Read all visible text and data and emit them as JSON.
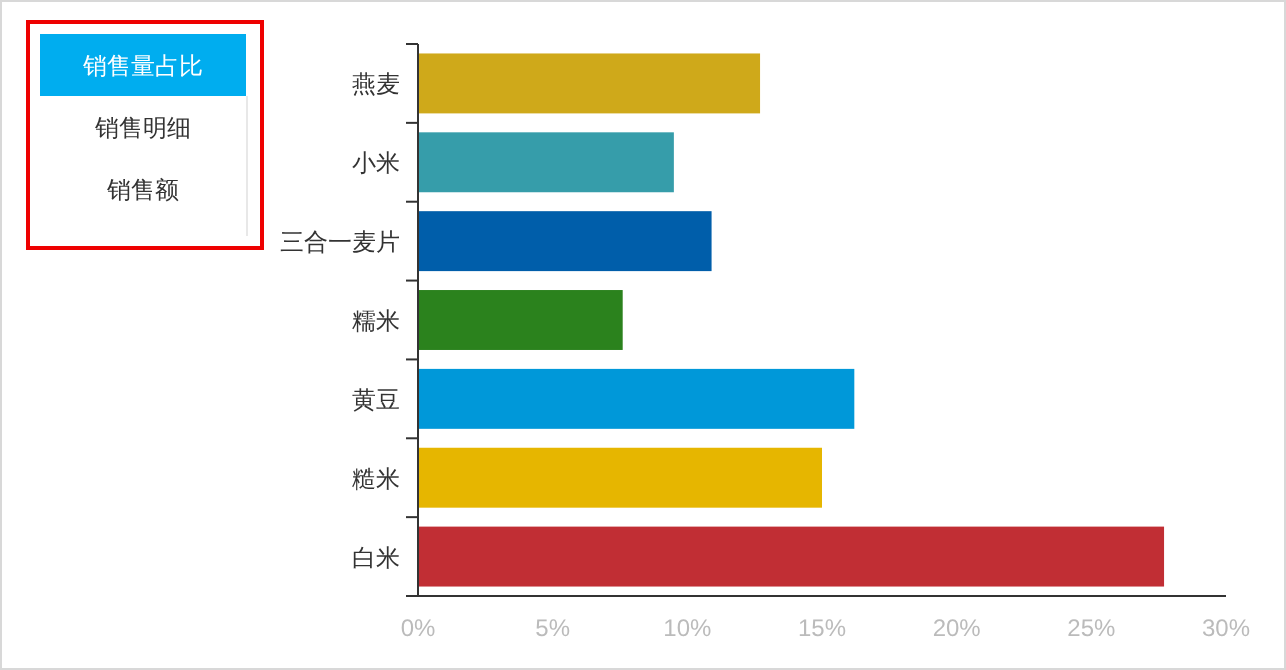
{
  "chart_data": [
    {
      "type": "other",
      "annotations": [
        "销售量占比",
        "销售明细",
        "销售额"
      ]
    },
    {
      "type": "bar",
      "orientation": "horizontal",
      "categories": [
        "燕麦",
        "小米",
        "三合一麦片",
        "糯米",
        "黄豆",
        "糙米",
        "白米"
      ],
      "values": [
        12.7,
        9.5,
        10.9,
        7.6,
        16.2,
        15.0,
        27.7
      ],
      "colors": [
        "#cfa91a",
        "#369daa",
        "#005eaa",
        "#2b821d",
        "#0098d9",
        "#e6b600",
        "#c12e34"
      ],
      "xlim": [
        0,
        30
      ],
      "xticks": [
        {
          "value": 0,
          "label": "0%"
        },
        {
          "value": 5,
          "label": "5%"
        },
        {
          "value": 10,
          "label": "10%"
        },
        {
          "value": 15,
          "label": "15%"
        },
        {
          "value": 20,
          "label": "20%"
        },
        {
          "value": 25,
          "label": "25%"
        },
        {
          "value": 30,
          "label": "30%"
        }
      ],
      "grid": false
    }
  ]
}
